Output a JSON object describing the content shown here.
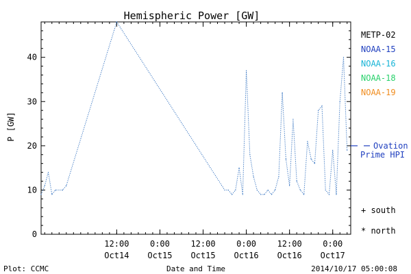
{
  "chart_data": {
    "type": "line",
    "title": "Hemispheric Power [GW]",
    "xlabel": "Date and Time",
    "ylabel": "P [GW]",
    "ylim": [
      0,
      48
    ],
    "yticks": [
      0,
      10,
      20,
      30,
      40
    ],
    "xlim": [
      "2014-10-13T15:00",
      "2014-10-17T05:00"
    ],
    "xticks": [
      {
        "t": "2014-10-14T12:00",
        "time": "12:00",
        "date": "Oct14"
      },
      {
        "t": "2014-10-15T00:00",
        "time": "0:00",
        "date": "Oct15"
      },
      {
        "t": "2014-10-15T12:00",
        "time": "12:00",
        "date": "Oct15"
      },
      {
        "t": "2014-10-16T00:00",
        "time": "0:00",
        "date": "Oct16"
      },
      {
        "t": "2014-10-16T12:00",
        "time": "12:00",
        "date": "Oct16"
      },
      {
        "t": "2014-10-17T00:00",
        "time": "0:00",
        "date": "Oct17"
      }
    ],
    "grid": false,
    "legend_position": "right",
    "series": [
      {
        "name": "METP-02",
        "color": "#000000",
        "values": []
      },
      {
        "name": "NOAA-15",
        "color": "#1f3fbf",
        "values": []
      },
      {
        "name": "NOAA-16",
        "color": "#16b4d6",
        "values": []
      },
      {
        "name": "NOAA-18",
        "color": "#27d16a",
        "points": [
          [
            "2014-10-14T12:00",
            48
          ],
          [
            "2014-10-15T18:00",
            10
          ],
          [
            "2014-10-15T19:00",
            10
          ],
          [
            "2014-10-15T20:00",
            9
          ],
          [
            "2014-10-15T21:00",
            10
          ],
          [
            "2014-10-15T22:00",
            15
          ],
          [
            "2014-10-15T23:00",
            9
          ],
          [
            "2014-10-16T00:00",
            37
          ],
          [
            "2014-10-16T01:00",
            18
          ],
          [
            "2014-10-16T02:00",
            13
          ],
          [
            "2014-10-16T03:00",
            10
          ],
          [
            "2014-10-16T04:00",
            9
          ],
          [
            "2014-10-16T05:00",
            9
          ],
          [
            "2014-10-16T06:00",
            10
          ],
          [
            "2014-10-16T07:00",
            9
          ],
          [
            "2014-10-16T08:00",
            10
          ],
          [
            "2014-10-16T09:00",
            13
          ],
          [
            "2014-10-16T10:00",
            32
          ],
          [
            "2014-10-16T11:00",
            17
          ],
          [
            "2014-10-16T12:00",
            11
          ],
          [
            "2014-10-16T13:00",
            26
          ],
          [
            "2014-10-16T14:00",
            12
          ],
          [
            "2014-10-16T15:00",
            10
          ],
          [
            "2014-10-16T16:00",
            9
          ],
          [
            "2014-10-16T17:00",
            21
          ],
          [
            "2014-10-16T18:00",
            17
          ],
          [
            "2014-10-16T19:00",
            16
          ],
          [
            "2014-10-16T20:00",
            28
          ],
          [
            "2014-10-16T21:00",
            29
          ],
          [
            "2014-10-16T22:00",
            10
          ],
          [
            "2014-10-16T23:00",
            9
          ],
          [
            "2014-10-17T00:00",
            19
          ],
          [
            "2014-10-17T01:00",
            9
          ],
          [
            "2014-10-17T02:00",
            30
          ],
          [
            "2014-10-17T03:00",
            40
          ],
          [
            "2014-10-17T04:00",
            19
          ]
        ]
      },
      {
        "name": "NOAA-19",
        "color": "#f08c1e",
        "points": [
          [
            "2014-10-13T15:00",
            9
          ],
          [
            "2014-10-13T16:00",
            11
          ],
          [
            "2014-10-13T17:00",
            14
          ],
          [
            "2014-10-13T18:00",
            9
          ],
          [
            "2014-10-13T19:00",
            10
          ],
          [
            "2014-10-13T21:00",
            10
          ],
          [
            "2014-10-13T22:00",
            11
          ],
          [
            "2014-10-14T12:00",
            48
          ]
        ]
      }
    ],
    "ovation": {
      "label": "Ovation Prime HPI",
      "line1": "Ovation",
      "line2": "Prime HPI",
      "value": 20,
      "color": "#1f3fbf"
    },
    "markers": [
      {
        "symbol": "+",
        "label": "south"
      },
      {
        "symbol": "*",
        "label": "north"
      }
    ]
  },
  "footer": {
    "left": "Plot: CCMC",
    "center": "Date and Time",
    "right": "2014/10/17 05:00:08"
  }
}
